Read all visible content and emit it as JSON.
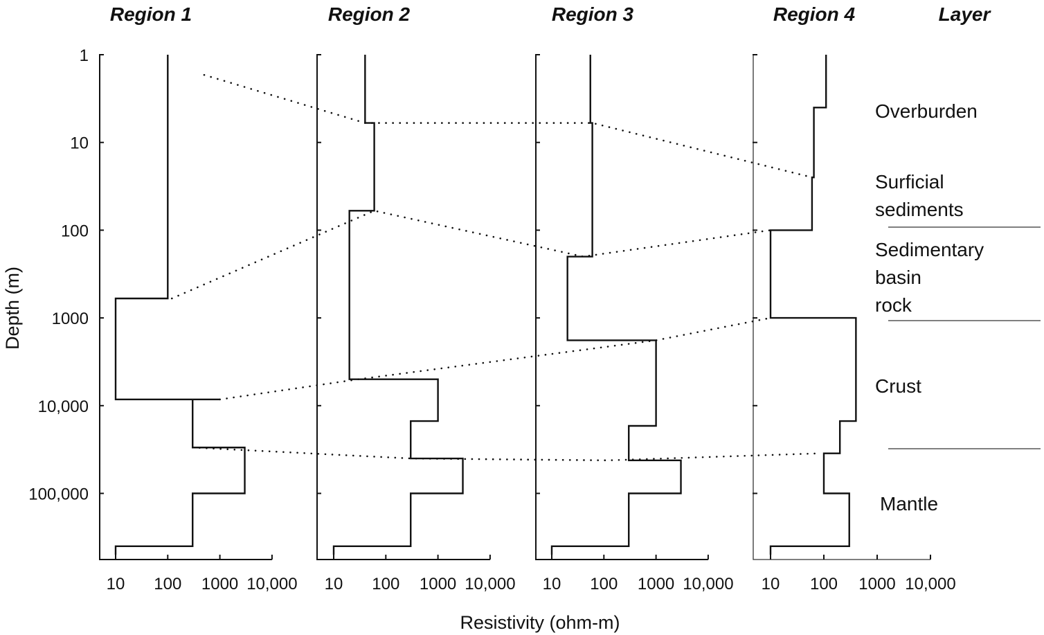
{
  "chart_data": {
    "type": "line",
    "x_scale": "log",
    "y_scale": "log",
    "y_reversed": true,
    "ylabel": "Depth (m)",
    "xlabel": "Resistivity (ohm-m)",
    "ylim": [
      1,
      500000
    ],
    "xlim": [
      5,
      10000
    ],
    "y_ticks": [
      {
        "value": 1,
        "label": "1"
      },
      {
        "value": 10,
        "label": "10"
      },
      {
        "value": 100,
        "label": "100"
      },
      {
        "value": 1000,
        "label": "1000"
      },
      {
        "value": 10000,
        "label": "10,000"
      },
      {
        "value": 100000,
        "label": "100,000"
      }
    ],
    "x_ticks": [
      {
        "value": 10,
        "label": "10"
      },
      {
        "value": 100,
        "label": "100"
      },
      {
        "value": 1000,
        "label": "1000"
      },
      {
        "value": 10000,
        "label": "10,000"
      }
    ],
    "layer_header": "Layer",
    "series": [
      {
        "name": "Region 1",
        "profile": [
          {
            "res": 100,
            "top": 1,
            "bottom": 600
          },
          {
            "res": 10,
            "top": 600,
            "bottom": 8500
          },
          {
            "res": 1000,
            "top": 8500,
            "bottom": 8500
          },
          {
            "res": 300,
            "top": 8500,
            "bottom": 30000
          },
          {
            "res": 3000,
            "top": 30000,
            "bottom": 100000
          },
          {
            "res": 300,
            "top": 100000,
            "bottom": 400000
          },
          {
            "res": 10,
            "top": 400000,
            "bottom": 500000
          }
        ]
      },
      {
        "name": "Region 2",
        "profile": [
          {
            "res": 40,
            "top": 1,
            "bottom": 6
          },
          {
            "res": 60,
            "top": 6,
            "bottom": 60
          },
          {
            "res": 20,
            "top": 60,
            "bottom": 5000
          },
          {
            "res": 1000,
            "top": 5000,
            "bottom": 15000
          },
          {
            "res": 300,
            "top": 15000,
            "bottom": 40000
          },
          {
            "res": 3000,
            "top": 40000,
            "bottom": 100000
          },
          {
            "res": 300,
            "top": 100000,
            "bottom": 400000
          },
          {
            "res": 10,
            "top": 400000,
            "bottom": 500000
          }
        ]
      },
      {
        "name": "Region 3",
        "profile": [
          {
            "res": 55,
            "top": 1,
            "bottom": 6
          },
          {
            "res": 60,
            "top": 6,
            "bottom": 200
          },
          {
            "res": 20,
            "top": 200,
            "bottom": 1800
          },
          {
            "res": 1000,
            "top": 1800,
            "bottom": 17000
          },
          {
            "res": 300,
            "top": 17000,
            "bottom": 42000
          },
          {
            "res": 3000,
            "top": 42000,
            "bottom": 100000
          },
          {
            "res": 300,
            "top": 100000,
            "bottom": 400000
          },
          {
            "res": 10,
            "top": 400000,
            "bottom": 500000
          }
        ]
      },
      {
        "name": "Region 4",
        "profile": [
          {
            "res": 110,
            "top": 1,
            "bottom": 4
          },
          {
            "res": 65,
            "top": 4,
            "bottom": 25
          },
          {
            "res": 60,
            "top": 25,
            "bottom": 100
          },
          {
            "res": 10,
            "top": 100,
            "bottom": 1000
          },
          {
            "res": 400,
            "top": 1000,
            "bottom": 15000
          },
          {
            "res": 200,
            "top": 15000,
            "bottom": 35000
          },
          {
            "res": 100,
            "top": 35000,
            "bottom": 100000
          },
          {
            "res": 300,
            "top": 100000,
            "bottom": 400000
          },
          {
            "res": 10,
            "top": 400000,
            "bottom": 500000
          }
        ]
      }
    ],
    "correlation_lines": [
      {
        "name": "Overburden base",
        "points": [
          [
            1,
            500,
            1.7
          ],
          [
            2,
            40,
            6
          ],
          [
            3,
            60,
            6
          ],
          [
            4,
            60,
            25
          ]
        ]
      },
      {
        "name": "Surficial sediments base",
        "points": [
          [
            1,
            120,
            600
          ],
          [
            2,
            60,
            60
          ],
          [
            3,
            40,
            200
          ],
          [
            4,
            10,
            100
          ]
        ]
      },
      {
        "name": "Sedimentary basin rock base",
        "points": [
          [
            1,
            1000,
            8500
          ],
          [
            2,
            30,
            5000
          ],
          [
            3,
            1000,
            1800
          ],
          [
            4,
            10,
            1000
          ]
        ]
      },
      {
        "name": "Crust base",
        "points": [
          [
            1,
            300,
            30000
          ],
          [
            2,
            300,
            40000
          ],
          [
            3,
            120,
            42000
          ],
          [
            4,
            80,
            35000
          ]
        ]
      }
    ],
    "layers": [
      {
        "lines": [
          "Overburden"
        ]
      },
      {
        "lines": [
          "Surficial",
          "sediments"
        ]
      },
      {
        "lines": [
          "Sedimentary",
          "basin",
          "rock"
        ]
      },
      {
        "lines": [
          "Crust"
        ]
      },
      {
        "lines": [
          "Mantle"
        ]
      }
    ]
  }
}
